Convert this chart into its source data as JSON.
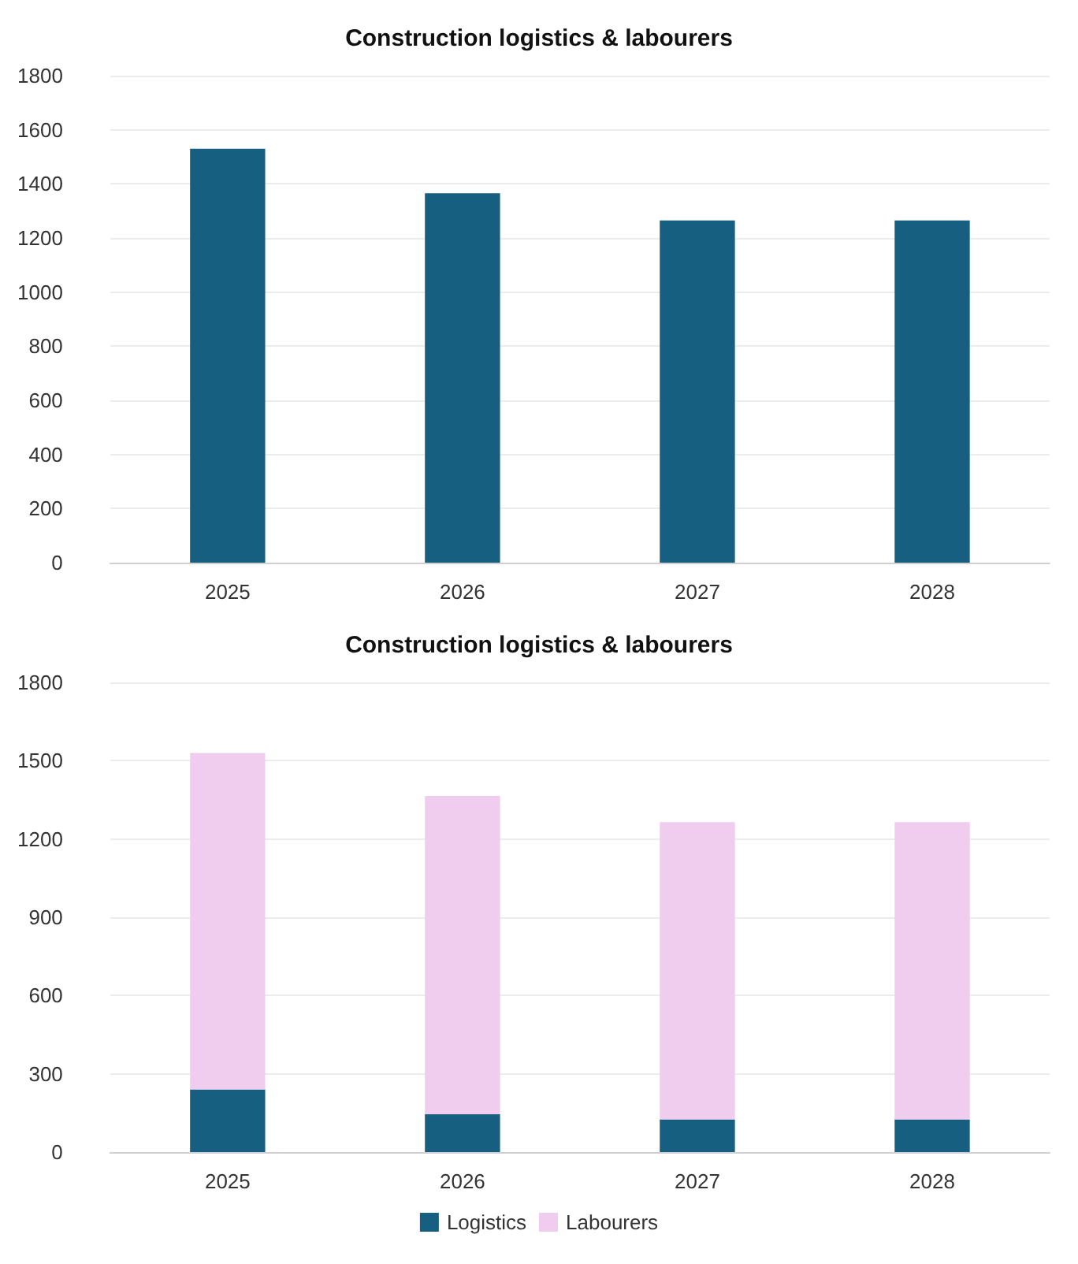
{
  "chart_data": [
    {
      "type": "bar",
      "title": "Construction logistics & labourers",
      "categories": [
        "2025",
        "2026",
        "2027",
        "2028"
      ],
      "values": [
        1530,
        1365,
        1265,
        1265
      ],
      "color": "#175f80",
      "ylim": [
        0,
        1800
      ],
      "yticks": [
        0,
        200,
        400,
        600,
        800,
        1000,
        1200,
        1400,
        1600,
        1800
      ],
      "grid": "y",
      "legend": false
    },
    {
      "type": "bar",
      "title": "Construction logistics & labourers",
      "categories": [
        "2025",
        "2026",
        "2027",
        "2028"
      ],
      "stacked": true,
      "series": [
        {
          "name": "Logistics",
          "color": "#175f80",
          "values": [
            240,
            145,
            125,
            125
          ]
        },
        {
          "name": "Labourers",
          "color": "#f0cdee",
          "values": [
            1290,
            1220,
            1140,
            1140
          ]
        }
      ],
      "ylim": [
        0,
        1800
      ],
      "yticks": [
        0,
        300,
        600,
        900,
        1200,
        1500,
        1800
      ],
      "grid": "y",
      "legend": "bottom"
    }
  ]
}
